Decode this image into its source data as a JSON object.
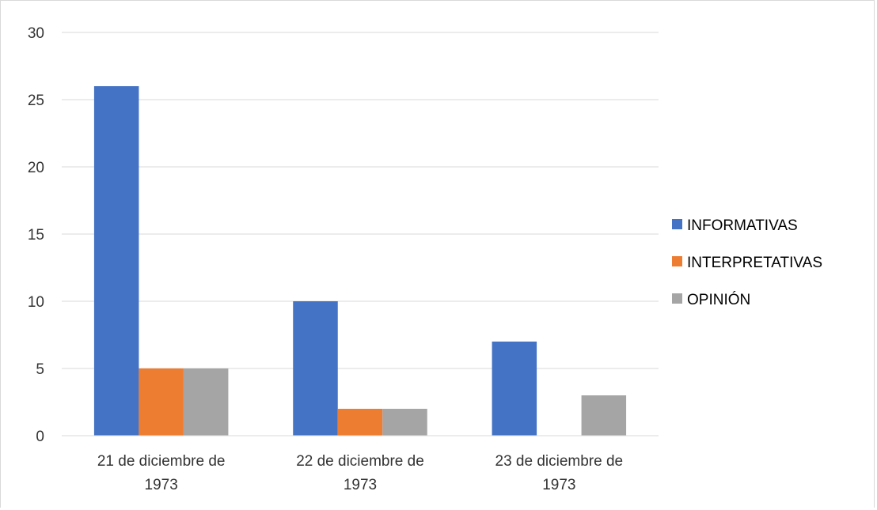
{
  "chart_data": {
    "type": "bar",
    "categories": [
      [
        "21 de diciembre de",
        "1973"
      ],
      [
        "22 de diciembre de",
        "1973"
      ],
      [
        "23 de diciembre de",
        "1973"
      ]
    ],
    "series": [
      {
        "name": "INFORMATIVAS",
        "values": [
          26,
          10,
          7
        ],
        "color": "#4472C4"
      },
      {
        "name": "INTERPRETATIVAS",
        "values": [
          5,
          2,
          0
        ],
        "color": "#ED7D31"
      },
      {
        "name": "OPINIÓN",
        "values": [
          5,
          2,
          3
        ],
        "color": "#A5A5A5"
      }
    ],
    "ylim": [
      0,
      30
    ],
    "yticks": [
      0,
      5,
      10,
      15,
      20,
      25,
      30
    ],
    "grid": true,
    "legend_position": "right"
  }
}
